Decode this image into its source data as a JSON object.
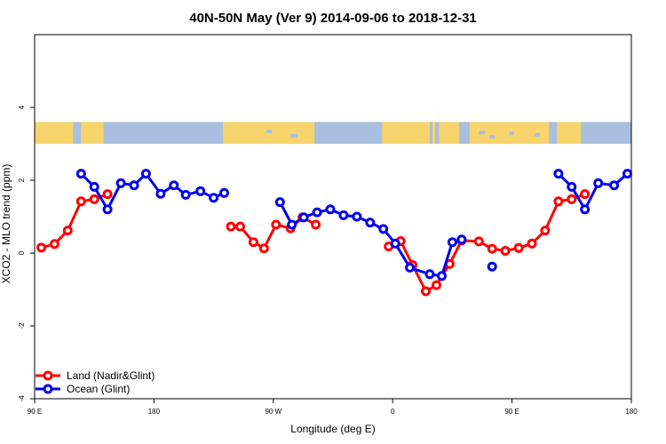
{
  "chart_data": {
    "type": "line",
    "title": "40N-50N May (Ver 9)   2014-09-06 to 2018-12-31",
    "xlabel": "Longitude (deg E)",
    "ylabel": "XCO2 - MLO trend (ppm)",
    "x_ticks": [
      {
        "value": 90,
        "label": "90 E"
      },
      {
        "value": 180,
        "label": "180"
      },
      {
        "value": 270,
        "label": "90 W"
      },
      {
        "value": 360,
        "label": "0"
      },
      {
        "value": 450,
        "label": "90 E"
      },
      {
        "value": 540,
        "label": "180"
      }
    ],
    "y_ticks": [
      {
        "value": -4,
        "label": "-4"
      },
      {
        "value": -2,
        "label": "-2"
      },
      {
        "value": 0,
        "label": "0"
      },
      {
        "value": 2,
        "label": "2"
      },
      {
        "value": 4,
        "label": "4"
      }
    ],
    "xlim": [
      90,
      540
    ],
    "ylim": [
      -4,
      6
    ],
    "map_strip_y": [
      3.0,
      3.6
    ],
    "land_color": "#f7d56c",
    "ocean_color": "#a8bfe0",
    "series": [
      {
        "name": "Land (Nadir&Glint)",
        "color": "#ff0000",
        "segments": [
          [
            [
              95,
              0.15
            ],
            [
              105,
              0.25
            ],
            [
              115,
              0.62
            ],
            [
              125,
              1.42
            ],
            [
              135,
              1.48
            ],
            [
              145,
              1.62
            ]
          ],
          [
            [
              238,
              0.73
            ],
            [
              245,
              0.73
            ],
            [
              255,
              0.3
            ],
            [
              263,
              0.13
            ],
            [
              272,
              0.78
            ],
            [
              283,
              0.68
            ],
            [
              292,
              0.98
            ],
            [
              302,
              0.78
            ]
          ],
          [
            [
              357,
              0.18
            ],
            [
              366,
              0.33
            ],
            [
              375,
              -0.33
            ],
            [
              385,
              -1.05
            ],
            [
              393,
              -0.88
            ],
            [
              403,
              -0.3
            ],
            [
              412,
              0.35
            ],
            [
              425,
              0.32
            ],
            [
              435,
              0.12
            ],
            [
              445,
              0.06
            ],
            [
              455,
              0.14
            ],
            [
              465,
              0.26
            ],
            [
              475,
              0.62
            ],
            [
              485,
              1.42
            ],
            [
              495,
              1.48
            ],
            [
              505,
              1.62
            ]
          ]
        ]
      },
      {
        "name": "Ocean (Glint)",
        "color": "#0000ee",
        "segments": [
          [
            [
              125,
              2.18
            ],
            [
              135,
              1.82
            ],
            [
              145,
              1.2
            ],
            [
              155,
              1.92
            ],
            [
              165,
              1.86
            ],
            [
              174,
              2.18
            ],
            [
              185,
              1.63
            ],
            [
              195,
              1.86
            ],
            [
              204,
              1.6
            ],
            [
              215,
              1.7
            ],
            [
              225,
              1.52
            ],
            [
              233,
              1.65
            ]
          ],
          [
            [
              275,
              1.4
            ],
            [
              284,
              0.78
            ],
            [
              293,
              0.98
            ],
            [
              303,
              1.12
            ],
            [
              313,
              1.2
            ],
            [
              323,
              1.04
            ],
            [
              333,
              1.0
            ],
            [
              343,
              0.84
            ],
            [
              353,
              0.66
            ],
            [
              362,
              0.26
            ],
            [
              373,
              -0.4
            ],
            [
              388,
              -0.58
            ],
            [
              397,
              -0.63
            ],
            [
              405,
              0.3
            ],
            [
              412,
              0.37
            ]
          ],
          [
            [
              435,
              -0.37
            ]
          ],
          [
            [
              485,
              2.18
            ],
            [
              495,
              1.82
            ],
            [
              505,
              1.2
            ],
            [
              515,
              1.92
            ],
            [
              527,
              1.86
            ],
            [
              537,
              2.18
            ]
          ]
        ]
      }
    ],
    "legend": {
      "position": "bottom-left",
      "entries": [
        "Land (Nadir&Glint)",
        "Ocean (Glint)"
      ]
    },
    "grid": false
  }
}
